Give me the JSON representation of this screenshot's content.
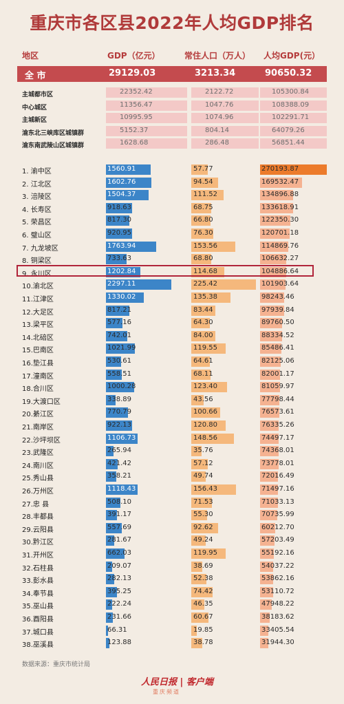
{
  "title": "重庆市各区县2022年人均GDP排名",
  "headers": {
    "region": "地区",
    "gdp": "GDP（亿元）",
    "pop": "常住人口（万人）",
    "per_capita": "人均GDP(元）"
  },
  "total": {
    "label": "全  市",
    "gdp": "29129.03",
    "pop": "3213.34",
    "per_capita": "90650.32"
  },
  "groups": [
    {
      "label": "主城都市区",
      "gdp": "22352.42",
      "pop": "2122.72",
      "per_capita": "105300.84"
    },
    {
      "label": "中心城区",
      "gdp": "11356.47",
      "pop": "1047.76",
      "per_capita": "108388.09"
    },
    {
      "label": "主城新区",
      "gdp": "10995.95",
      "pop": "1074.96",
      "per_capita": "102291.71"
    },
    {
      "label": "渝东北三峡库区城镇群",
      "gdp": "5152.37",
      "pop": "804.14",
      "per_capita": "64079.26"
    },
    {
      "label": "渝东南武陵山区城镇群",
      "gdp": "1628.68",
      "pop": "286.48",
      "per_capita": "56851.44"
    }
  ],
  "chart_data": {
    "type": "table",
    "title": "重庆市各区县2022年人均GDP排名",
    "columns": [
      "地区",
      "GDP（亿元）",
      "常住人口（万人）",
      "人均GDP(元）"
    ],
    "rows": [
      {
        "label": "1.  渝中区",
        "gdp": 1560.91,
        "pop": 57.77,
        "pc": 270193.87
      },
      {
        "label": "2.  江北区",
        "gdp": 1602.76,
        "pop": 94.54,
        "pc": 169532.47
      },
      {
        "label": "3.  涪陵区",
        "gdp": 1504.37,
        "pop": 111.52,
        "pc": 134896.88
      },
      {
        "label": "4.  长寿区",
        "gdp": 918.63,
        "pop": 68.75,
        "pc": 133618.91
      },
      {
        "label": "5.  荣昌区",
        "gdp": 817.3,
        "pop": 66.8,
        "pc": 122350.3
      },
      {
        "label": "6.  璧山区",
        "gdp": 920.95,
        "pop": 76.3,
        "pc": 120701.18
      },
      {
        "label": "7.  九龙坡区",
        "gdp": 1763.94,
        "pop": 153.56,
        "pc": 114869.76
      },
      {
        "label": "8.  铜梁区",
        "gdp": 733.63,
        "pop": 68.8,
        "pc": 106632.27
      },
      {
        "label": "9.  永川区",
        "gdp": 1202.84,
        "pop": 114.68,
        "pc": 104886.64
      },
      {
        "label": "10.渝北区",
        "gdp": 2297.11,
        "pop": 225.42,
        "pc": 101903.64
      },
      {
        "label": "11.江津区",
        "gdp": 1330.02,
        "pop": 135.38,
        "pc": 98243.46
      },
      {
        "label": "12.大足区",
        "gdp": 817.21,
        "pop": 83.44,
        "pc": 97939.84
      },
      {
        "label": "13.梁平区",
        "gdp": 577.16,
        "pop": 64.3,
        "pc": 89760.5
      },
      {
        "label": "14.北碚区",
        "gdp": 742.01,
        "pop": 84.0,
        "pc": 88334.52
      },
      {
        "label": "15.巴南区",
        "gdp": 1021.99,
        "pop": 119.55,
        "pc": 85486.41
      },
      {
        "label": "16.垫江县",
        "gdp": 530.61,
        "pop": 64.61,
        "pc": 82125.06
      },
      {
        "label": "17.潼南区",
        "gdp": 558.51,
        "pop": 68.11,
        "pc": 82001.17
      },
      {
        "label": "18.合川区",
        "gdp": 1000.28,
        "pop": 123.4,
        "pc": 81059.97
      },
      {
        "label": "19.大渡口区",
        "gdp": 338.89,
        "pop": 43.56,
        "pc": 77798.44
      },
      {
        "label": "20.綦江区",
        "gdp": 770.79,
        "pop": 100.66,
        "pc": 76573.61
      },
      {
        "label": "21.南岸区",
        "gdp": 922.13,
        "pop": 120.8,
        "pc": 76335.26
      },
      {
        "label": "22.沙坪坝区",
        "gdp": 1106.73,
        "pop": 148.56,
        "pc": 74497.17
      },
      {
        "label": "23.武隆区",
        "gdp": 265.94,
        "pop": 35.76,
        "pc": 74368.01
      },
      {
        "label": "24.南川区",
        "gdp": 421.42,
        "pop": 57.12,
        "pc": 73778.01
      },
      {
        "label": "25.秀山县",
        "gdp": 358.21,
        "pop": 49.74,
        "pc": 72016.49
      },
      {
        "label": "26.万州区",
        "gdp": 1118.43,
        "pop": 156.43,
        "pc": 71497.16
      },
      {
        "label": "27.忠    县",
        "gdp": 508.1,
        "pop": 71.53,
        "pc": 71033.13
      },
      {
        "label": "28.丰都县",
        "gdp": 391.17,
        "pop": 55.3,
        "pc": 70735.99
      },
      {
        "label": "29.云阳县",
        "gdp": 557.69,
        "pop": 92.62,
        "pc": 60212.7
      },
      {
        "label": "30.黔江区",
        "gdp": 281.67,
        "pop": 49.24,
        "pc": 57203.49
      },
      {
        "label": "31.开州区",
        "gdp": 662.03,
        "pop": 119.95,
        "pc": 55192.16
      },
      {
        "label": "32.石柱县",
        "gdp": 209.07,
        "pop": 38.69,
        "pc": 54037.22
      },
      {
        "label": "33.彭水县",
        "gdp": 282.13,
        "pop": 52.38,
        "pc": 53862.16
      },
      {
        "label": "34.奉节县",
        "gdp": 395.25,
        "pop": 74.42,
        "pc": 53110.72
      },
      {
        "label": "35.巫山县",
        "gdp": 222.24,
        "pop": 46.35,
        "pc": 47948.22
      },
      {
        "label": "36.酉阳县",
        "gdp": 231.66,
        "pop": 60.67,
        "pc": 38183.62
      },
      {
        "label": "37.城口县",
        "gdp": 66.31,
        "pop": 19.85,
        "pc": 33405.54
      },
      {
        "label": "38.巫溪县",
        "gdp": 123.88,
        "pop": 38.78,
        "pc": 31944.3
      }
    ],
    "highlighted_row": 8
  },
  "source": "数据来源：重庆市统计局",
  "brand": {
    "logo": "人民日报",
    "sep": "|",
    "name": "客户端",
    "sub": "重庆频道"
  },
  "colors": {
    "title": "#b03a3a",
    "total_bar": "#c44b4e",
    "gdp_bar": "#3c85c8",
    "pop_bar": "#f5b87c",
    "pc_bar": "#f5b291",
    "pc_top_bar": "#ec7b2b",
    "highlight": "#b0243a"
  }
}
